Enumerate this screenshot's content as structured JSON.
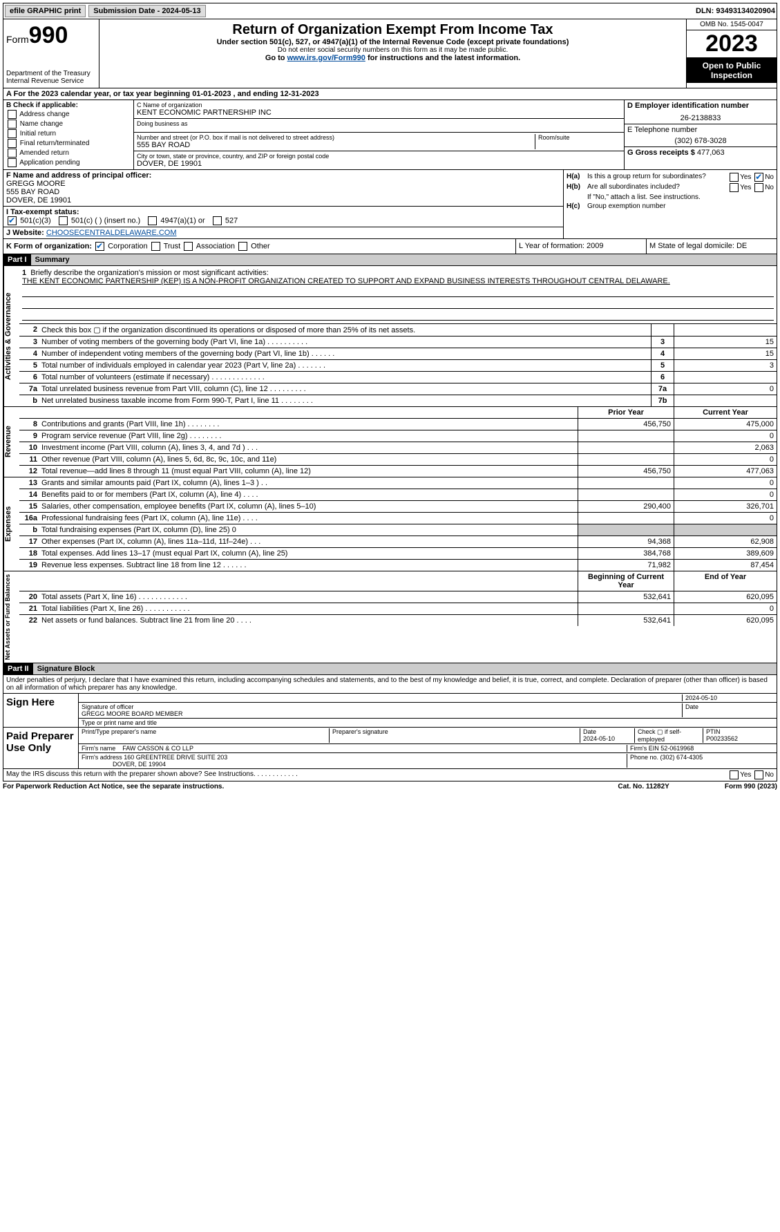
{
  "topbar": {
    "efile": "efile GRAPHIC print",
    "submission": "Submission Date - 2024-05-13",
    "dln": "DLN: 93493134020904"
  },
  "header": {
    "form_label": "Form",
    "form_number": "990",
    "dept": "Department of the Treasury Internal Revenue Service",
    "title": "Return of Organization Exempt From Income Tax",
    "sub1": "Under section 501(c), 527, or 4947(a)(1) of the Internal Revenue Code (except private foundations)",
    "sub2": "Do not enter social security numbers on this form as it may be made public.",
    "sub3_pre": "Go to ",
    "sub3_link": "www.irs.gov/Form990",
    "sub3_post": " for instructions and the latest information.",
    "omb": "OMB No. 1545-0047",
    "year": "2023",
    "open": "Open to Public Inspection"
  },
  "row_a": "A   For the 2023 calendar year, or tax year beginning 01-01-2023    , and ending 12-31-2023",
  "col_b": {
    "label": "B Check if applicable:",
    "items": [
      "Address change",
      "Name change",
      "Initial return",
      "Final return/terminated",
      "Amended return",
      "Application pending"
    ]
  },
  "col_c": {
    "name_label": "C Name of organization",
    "name": "KENT ECONOMIC PARTNERSHIP INC",
    "dba_label": "Doing business as",
    "dba": "",
    "street_label": "Number and street (or P.O. box if mail is not delivered to street address)",
    "street": "555 BAY ROAD",
    "room_label": "Room/suite",
    "city_label": "City or town, state or province, country, and ZIP or foreign postal code",
    "city": "DOVER, DE  19901"
  },
  "col_d": {
    "ein_label": "D Employer identification number",
    "ein": "26-2138833",
    "phone_label": "E Telephone number",
    "phone": "(302) 678-3028",
    "gross_label": "G Gross receipts $",
    "gross": "477,063"
  },
  "f": {
    "label": "F  Name and address of principal officer:",
    "name": "GREGG MOORE",
    "street": "555 BAY ROAD",
    "city": "DOVER, DE  19901"
  },
  "i": {
    "label": "I   Tax-exempt status:",
    "opts": {
      "c3": "501(c)(3)",
      "c": "501(c) (  ) (insert no.)",
      "a1": "4947(a)(1) or",
      "s527": "527"
    }
  },
  "j": {
    "label": "J   Website: ",
    "value": "CHOOSECENTRALDELAWARE.COM"
  },
  "h": {
    "a_label": "H(a)",
    "a_text": "Is this a group return for subordinates?",
    "b_label": "H(b)",
    "b_text": "Are all subordinates included?",
    "b_note": "If \"No,\" attach a list. See instructions.",
    "c_label": "H(c)",
    "c_text": "Group exemption number ",
    "yes": "Yes",
    "no": "No"
  },
  "k": {
    "label": "K Form of organization:",
    "opts": [
      "Corporation",
      "Trust",
      "Association",
      "Other"
    ]
  },
  "l": "L Year of formation: 2009",
  "m": "M State of legal domicile: DE",
  "part1": {
    "header": "Part I",
    "title": "Summary"
  },
  "mission": {
    "num": "1",
    "label": "Briefly describe the organization's mission or most significant activities:",
    "text": "THE KENT ECONOMIC PARTNERSHIP (KEP) IS A NON-PROFIT ORGANIZATION CREATED TO SUPPORT AND EXPAND BUSINESS INTERESTS THROUGHOUT CENTRAL DELAWARE."
  },
  "gov_rows": [
    {
      "n": "2",
      "d": "Check this box ▢ if the organization discontinued its operations or disposed of more than 25% of its net assets.",
      "box": "",
      "v": ""
    },
    {
      "n": "3",
      "d": "Number of voting members of the governing body (Part VI, line 1a)  .   .   .   .   .   .   .   .   .   .",
      "box": "3",
      "v": "15"
    },
    {
      "n": "4",
      "d": "Number of independent voting members of the governing body (Part VI, line 1b)  .   .   .   .   .   .",
      "box": "4",
      "v": "15"
    },
    {
      "n": "5",
      "d": "Total number of individuals employed in calendar year 2023 (Part V, line 2a)  .   .   .   .   .   .   .",
      "box": "5",
      "v": "3"
    },
    {
      "n": "6",
      "d": "Total number of volunteers (estimate if necessary)   .   .   .   .   .   .   .   .   .   .   .   .   .",
      "box": "6",
      "v": ""
    },
    {
      "n": "7a",
      "d": "Total unrelated business revenue from Part VIII, column (C), line 12  .   .   .   .   .   .   .   .   .",
      "box": "7a",
      "v": "0"
    },
    {
      "n": "b",
      "d": "Net unrelated business taxable income from Form 990-T, Part I, line 11  .   .   .   .   .   .   .   .",
      "box": "7b",
      "v": ""
    }
  ],
  "rev_header": {
    "prior": "Prior Year",
    "current": "Current Year"
  },
  "rev_rows": [
    {
      "n": "8",
      "d": "Contributions and grants (Part VIII, line 1h)   .   .   .   .   .   .   .   .",
      "p": "456,750",
      "c": "475,000"
    },
    {
      "n": "9",
      "d": "Program service revenue (Part VIII, line 2g)   .   .   .   .   .   .   .   .",
      "p": "",
      "c": "0"
    },
    {
      "n": "10",
      "d": "Investment income (Part VIII, column (A), lines 3, 4, and 7d )   .   .   .",
      "p": "",
      "c": "2,063"
    },
    {
      "n": "11",
      "d": "Other revenue (Part VIII, column (A), lines 5, 6d, 8c, 9c, 10c, and 11e)",
      "p": "",
      "c": "0"
    },
    {
      "n": "12",
      "d": "Total revenue—add lines 8 through 11 (must equal Part VIII, column (A), line 12)",
      "p": "456,750",
      "c": "477,063"
    }
  ],
  "exp_rows": [
    {
      "n": "13",
      "d": "Grants and similar amounts paid (Part IX, column (A), lines 1–3 )   .   .",
      "p": "",
      "c": "0"
    },
    {
      "n": "14",
      "d": "Benefits paid to or for members (Part IX, column (A), line 4)   .   .   .   .",
      "p": "",
      "c": "0"
    },
    {
      "n": "15",
      "d": "Salaries, other compensation, employee benefits (Part IX, column (A), lines 5–10)",
      "p": "290,400",
      "c": "326,701"
    },
    {
      "n": "16a",
      "d": "Professional fundraising fees (Part IX, column (A), line 11e)   .   .   .   .",
      "p": "",
      "c": "0"
    },
    {
      "n": "b",
      "d": "Total fundraising expenses (Part IX, column (D), line 25) 0",
      "p": "grey",
      "c": "grey"
    },
    {
      "n": "17",
      "d": "Other expenses (Part IX, column (A), lines 11a–11d, 11f–24e)   .   .   .",
      "p": "94,368",
      "c": "62,908"
    },
    {
      "n": "18",
      "d": "Total expenses. Add lines 13–17 (must equal Part IX, column (A), line 25)",
      "p": "384,768",
      "c": "389,609"
    },
    {
      "n": "19",
      "d": "Revenue less expenses. Subtract line 18 from line 12  .   .   .   .   .   .",
      "p": "71,982",
      "c": "87,454"
    }
  ],
  "net_header": {
    "prior": "Beginning of Current Year",
    "current": "End of Year"
  },
  "net_rows": [
    {
      "n": "20",
      "d": "Total assets (Part X, line 16)  .   .   .   .   .   .   .   .   .   .   .   .",
      "p": "532,641",
      "c": "620,095"
    },
    {
      "n": "21",
      "d": "Total liabilities (Part X, line 26)  .   .   .   .   .   .   .   .   .   .   .",
      "p": "",
      "c": "0"
    },
    {
      "n": "22",
      "d": "Net assets or fund balances. Subtract line 21 from line 20  .   .   .   .",
      "p": "532,641",
      "c": "620,095"
    }
  ],
  "vlabels": {
    "gov": "Activities & Governance",
    "rev": "Revenue",
    "exp": "Expenses",
    "net": "Net Assets or Fund Balances"
  },
  "part2": {
    "header": "Part II",
    "title": "Signature Block"
  },
  "sig": {
    "declaration": "Under penalties of perjury, I declare that I have examined this return, including accompanying schedules and statements, and to the best of my knowledge and belief, it is true, correct, and complete. Declaration of preparer (other than officer) is based on all information of which preparer has any knowledge.",
    "sign_here": "Sign Here",
    "sig_officer": "Signature of officer",
    "officer": "GREGG MOORE  BOARD MEMBER",
    "type_name": "Type or print name and title",
    "date1": "2024-05-10",
    "date_lbl": "Date",
    "paid": "Paid Preparer Use Only",
    "print_lbl": "Print/Type preparer's name",
    "prep_sig_lbl": "Preparer's signature",
    "date2": "2024-05-10",
    "check_lbl": "Check ▢ if self-employed",
    "ptin_lbl": "PTIN",
    "ptin": "P00233562",
    "firm_name_lbl": "Firm's name   ",
    "firm_name": "FAW CASSON & CO LLP",
    "firm_ein_lbl": "Firm's EIN  ",
    "firm_ein": "52-0619968",
    "firm_addr_lbl": "Firm's address ",
    "firm_addr1": "160 GREENTREE DRIVE SUITE 203",
    "firm_addr2": "DOVER, DE  19904",
    "phone_lbl": "Phone no. ",
    "phone": "(302) 674-4305",
    "may_discuss": "May the IRS discuss this return with the preparer shown above? See Instructions.   .   .   .   .   .   .   .   .   .   .   ."
  },
  "footer": {
    "paperwork": "For Paperwork Reduction Act Notice, see the separate instructions.",
    "cat": "Cat. No. 11282Y",
    "form": "Form 990 (2023)"
  }
}
